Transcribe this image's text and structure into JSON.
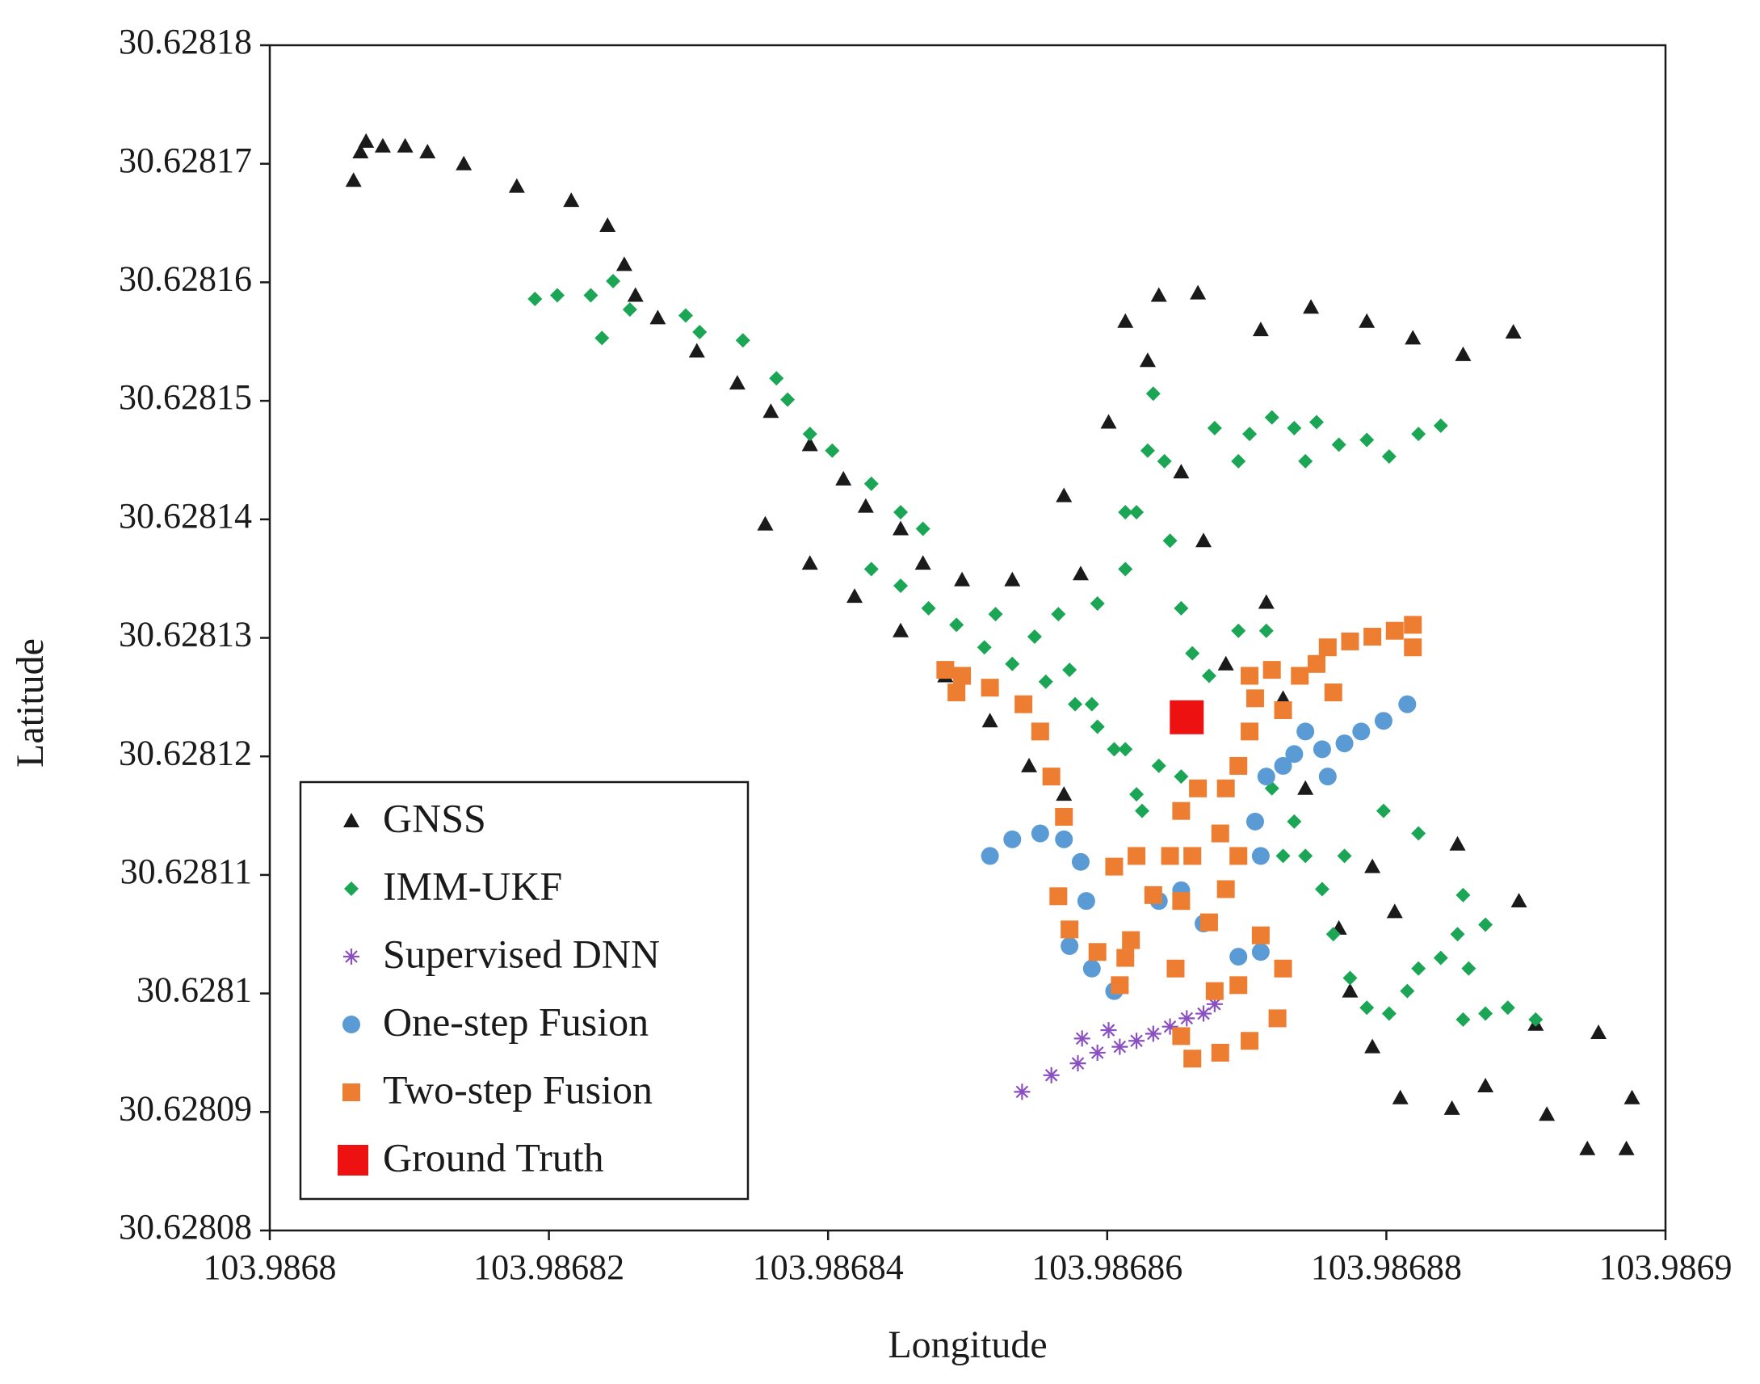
{
  "chart_data": {
    "type": "scatter",
    "x_label": "Longitude",
    "y_label": "Latitude",
    "xlim": [
      103.9868,
      103.9869
    ],
    "ylim": [
      30.62808,
      30.62818
    ],
    "xticks": [
      103.9868,
      103.98682,
      103.98684,
      103.98686,
      103.98688,
      103.9869
    ],
    "yticks": [
      30.62808,
      30.62809,
      30.6281,
      30.62811,
      30.62812,
      30.62813,
      30.62814,
      30.62815,
      30.62816,
      30.62817,
      30.62818
    ],
    "legend": "lower left",
    "grid": false,
    "series": [
      {
        "name": "GNSS",
        "color": "#1a1a1a",
        "marker": "triangle",
        "x": [
          103.986806,
          103.9868065,
          103.9868069,
          103.9868081,
          103.9868097,
          103.9868113,
          103.9868139,
          103.9868177,
          103.9868216,
          103.9868242,
          103.9868254,
          103.9868262,
          103.9868278,
          103.9868306,
          103.9868335,
          103.9868359,
          103.9868387,
          103.9868411,
          103.9868427,
          103.9868452,
          103.9868468,
          103.9868496,
          103.9868355,
          103.9868387,
          103.9868419,
          103.9868452,
          103.9868484,
          103.9868516,
          103.9868544,
          103.9868569,
          103.9868532,
          103.9868581,
          103.9868569,
          103.9868601,
          103.9868613,
          103.9868637,
          103.9868665,
          103.9868629,
          103.9868653,
          103.9868669,
          103.986871,
          103.9868746,
          103.9868786,
          103.9868819,
          103.9868855,
          103.9868891,
          103.9868685,
          103.9868714,
          103.9868726,
          103.9868742,
          103.986879,
          103.9868806,
          103.9868766,
          103.9868774,
          103.986879,
          103.986881,
          103.9868847,
          103.9868871,
          103.9868907,
          103.9868915,
          103.9868944,
          103.9868972,
          103.9868976,
          103.9868952,
          103.9868895,
          103.9868851
        ],
        "y": [
          30.6281686,
          30.628171,
          30.6281719,
          30.6281715,
          30.6281715,
          30.628171,
          30.62817,
          30.6281681,
          30.6281669,
          30.6281648,
          30.6281615,
          30.6281589,
          30.628157,
          30.6281542,
          30.6281515,
          30.6281491,
          30.6281463,
          30.6281434,
          30.6281411,
          30.6281392,
          30.6281363,
          30.6281349,
          30.6281396,
          30.6281363,
          30.6281335,
          30.6281306,
          30.6281268,
          30.628123,
          30.6281192,
          30.6281168,
          30.6281349,
          30.6281354,
          30.628142,
          30.6281482,
          30.6281567,
          30.6281589,
          30.6281591,
          30.6281534,
          30.628144,
          30.6281382,
          30.628156,
          30.6281579,
          30.6281567,
          30.6281553,
          30.6281539,
          30.6281558,
          30.6281278,
          30.628133,
          30.6281249,
          30.6281173,
          30.6281107,
          30.6281069,
          30.6281055,
          30.6281002,
          30.6280955,
          30.6280912,
          30.6280903,
          30.6280922,
          30.6280974,
          30.6280898,
          30.6280869,
          30.6280869,
          30.6280912,
          30.6280967,
          30.6281078,
          30.6281126
        ]
      },
      {
        "name": "IMM-UKF",
        "color": "#1aa655",
        "marker": "diamond",
        "x": [
          103.986819,
          103.9868206,
          103.986823,
          103.9868238,
          103.9868246,
          103.9868258,
          103.9868298,
          103.9868308,
          103.9868339,
          103.9868363,
          103.9868371,
          103.9868387,
          103.9868403,
          103.9868431,
          103.9868452,
          103.9868468,
          103.9868431,
          103.9868452,
          103.9868472,
          103.9868492,
          103.9868512,
          103.9868532,
          103.9868556,
          103.9868577,
          103.9868593,
          103.9868613,
          103.9868637,
          103.9868653,
          103.986852,
          103.9868548,
          103.9868573,
          103.9868589,
          103.9868605,
          103.9868621,
          103.9868625,
          103.9868565,
          103.9868593,
          103.9868613,
          103.9868621,
          103.9868629,
          103.9868633,
          103.9868641,
          103.9868645,
          103.9868653,
          103.9868661,
          103.9868673,
          103.9868694,
          103.9868714,
          103.9868677,
          103.9868702,
          103.9868718,
          103.9868734,
          103.986875,
          103.9868766,
          103.9868786,
          103.9868802,
          103.9868823,
          103.9868839,
          103.9868742,
          103.9868694,
          103.9868613,
          103.9868718,
          103.9868734,
          103.9868742,
          103.9868754,
          103.9868762,
          103.9868774,
          103.9868786,
          103.9868802,
          103.9868815,
          103.9868823,
          103.9868839,
          103.9868851,
          103.9868859,
          103.9868855,
          103.9868871,
          103.9868887,
          103.9868907,
          103.9868798,
          103.9868823,
          103.9868855,
          103.9868871,
          103.986877,
          103.9868726
        ],
        "y": [
          30.6281586,
          30.6281589,
          30.6281589,
          30.6281553,
          30.6281601,
          30.6281577,
          30.6281572,
          30.6281558,
          30.6281551,
          30.6281519,
          30.6281501,
          30.6281472,
          30.6281458,
          30.628143,
          30.6281406,
          30.6281392,
          30.6281358,
          30.6281344,
          30.6281325,
          30.6281311,
          30.6281292,
          30.6281278,
          30.6281263,
          30.6281244,
          30.6281225,
          30.6281206,
          30.6281192,
          30.6281183,
          30.628132,
          30.6281301,
          30.6281273,
          30.6281244,
          30.6281206,
          30.6281168,
          30.6281154,
          30.628132,
          30.6281329,
          30.6281358,
          30.6281406,
          30.6281458,
          30.6281506,
          30.6281449,
          30.6281382,
          30.6281325,
          30.6281287,
          30.6281268,
          30.6281306,
          30.6281306,
          30.6281477,
          30.6281472,
          30.6281486,
          30.6281477,
          30.6281482,
          30.6281463,
          30.6281467,
          30.6281453,
          30.6281472,
          30.6281479,
          30.6281449,
          30.6281449,
          30.6281406,
          30.6281173,
          30.6281145,
          30.6281116,
          30.6281088,
          30.628105,
          30.6281013,
          30.6280988,
          30.6280983,
          30.6281002,
          30.6281021,
          30.628103,
          30.628105,
          30.6281021,
          30.6280978,
          30.6280983,
          30.6280988,
          30.6280978,
          30.6281154,
          30.6281135,
          30.6281083,
          30.6281058,
          30.6281116,
          30.6281116
        ]
      },
      {
        "name": "Supervised DNN",
        "color": "#8a4fc0",
        "marker": "asterisk",
        "x": [
          103.9868539,
          103.986856,
          103.9868579,
          103.9868582,
          103.9868593,
          103.9868601,
          103.9868609,
          103.9868621,
          103.9868633,
          103.9868645,
          103.9868657,
          103.9868669,
          103.9868677
        ],
        "y": [
          30.6280917,
          30.6280931,
          30.6280941,
          30.6280962,
          30.628095,
          30.6280969,
          30.6280955,
          30.628096,
          30.6280966,
          30.6280972,
          30.6280979,
          30.6280983,
          30.6280991
        ]
      },
      {
        "name": "One-step Fusion",
        "color": "#5b9bd5",
        "marker": "circle",
        "x": [
          103.9868516,
          103.9868532,
          103.9868552,
          103.9868569,
          103.9868581,
          103.9868585,
          103.9868573,
          103.9868589,
          103.9868605,
          103.9868637,
          103.9868653,
          103.9868669,
          103.986871,
          103.9868706,
          103.9868714,
          103.9868734,
          103.9868754,
          103.986877,
          103.9868782,
          103.9868798,
          103.9868815,
          103.9868742,
          103.9868726,
          103.9868758,
          103.9868694,
          103.986871
        ],
        "y": [
          30.6281116,
          30.628113,
          30.6281135,
          30.628113,
          30.6281111,
          30.6281078,
          30.628104,
          30.6281021,
          30.6281002,
          30.6281078,
          30.6281087,
          30.6281059,
          30.6281116,
          30.6281145,
          30.6281183,
          30.6281202,
          30.6281206,
          30.6281211,
          30.6281221,
          30.628123,
          30.6281244,
          30.6281221,
          30.6281192,
          30.6281183,
          30.6281031,
          30.6281035
        ]
      },
      {
        "name": "Two-step Fusion",
        "color": "#ed7d31",
        "marker": "square",
        "x": [
          103.9868484,
          103.9868496,
          103.9868492,
          103.9868516,
          103.986854,
          103.9868552,
          103.986856,
          103.9868569,
          103.9868565,
          103.9868573,
          103.9868593,
          103.9868609,
          103.9868617,
          103.9868633,
          103.9868645,
          103.9868653,
          103.9868649,
          103.9868653,
          103.9868661,
          103.9868681,
          103.9868702,
          103.9868722,
          103.9868726,
          103.986871,
          103.9868694,
          103.9868677,
          103.9868673,
          103.9868685,
          103.9868694,
          103.9868681,
          103.9868661,
          103.9868653,
          103.9868665,
          103.9868685,
          103.9868694,
          103.9868702,
          103.9868706,
          103.9868702,
          103.9868718,
          103.9868738,
          103.986875,
          103.9868758,
          103.9868774,
          103.986879,
          103.9868806,
          103.9868819,
          103.9868819,
          103.9868762,
          103.9868726,
          103.9868621,
          103.9868605,
          103.9868613
        ],
        "y": [
          30.6281273,
          30.6281268,
          30.6281254,
          30.6281258,
          30.6281244,
          30.6281221,
          30.6281183,
          30.6281149,
          30.6281082,
          30.6281054,
          30.6281035,
          30.6281007,
          30.6281045,
          30.6281083,
          30.6281116,
          30.6281078,
          30.6281021,
          30.6280964,
          30.6280945,
          30.628095,
          30.628096,
          30.6280979,
          30.6281021,
          30.6281049,
          30.6281007,
          30.6281002,
          30.628106,
          30.6281088,
          30.6281116,
          30.6281135,
          30.6281116,
          30.6281154,
          30.6281173,
          30.6281173,
          30.6281192,
          30.6281221,
          30.6281249,
          30.6281268,
          30.6281273,
          30.6281268,
          30.6281278,
          30.6281292,
          30.6281297,
          30.6281301,
          30.6281306,
          30.6281311,
          30.6281292,
          30.6281254,
          30.6281239,
          30.6281116,
          30.6281107,
          30.628103
        ]
      },
      {
        "name": "Ground Truth",
        "color": "#ee1111",
        "marker": "big-square",
        "x": [
          103.9868657
        ],
        "y": [
          30.6281233
        ]
      }
    ]
  }
}
